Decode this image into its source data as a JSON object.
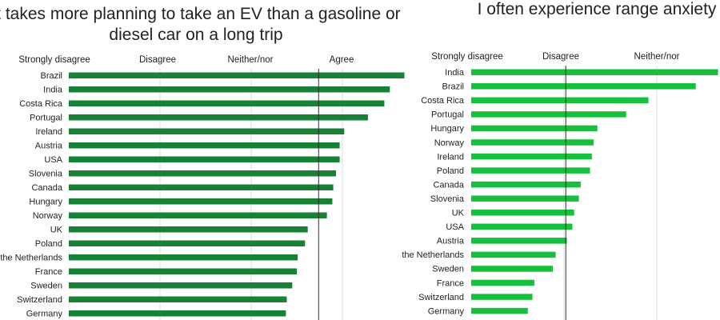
{
  "chart_data": [
    {
      "type": "bar",
      "orientation": "horizontal",
      "title_lines": [
        "It takes more planning to take an EV than a gasoline or",
        "diesel car on a long trip"
      ],
      "tick_labels": [
        "Strongly disagree",
        "Disagree",
        "Neither/nor",
        "Agree"
      ],
      "xlim": [
        1,
        4.75
      ],
      "reference_line": 3.74,
      "color": "#178236",
      "categories": [
        "Brazil",
        "India",
        "Costa Rica",
        "Portugal",
        "Ireland",
        "Austria",
        "USA",
        "Slovenia",
        "Canada",
        "Hungary",
        "Norway",
        "UK",
        "Poland",
        "the Netherlands",
        "France",
        "Sweden",
        "Switzerland",
        "Germany"
      ],
      "values": [
        4.68,
        4.52,
        4.46,
        4.28,
        4.02,
        3.97,
        3.97,
        3.93,
        3.9,
        3.89,
        3.83,
        3.62,
        3.59,
        3.51,
        3.5,
        3.45,
        3.39,
        3.38
      ]
    },
    {
      "type": "bar",
      "orientation": "horizontal",
      "title_lines": [
        "I often experience range anxiety"
      ],
      "tick_labels": [
        "Strongly disagree",
        "Disagree",
        "Neither/nor"
      ],
      "xlim": [
        1,
        3.68
      ],
      "reference_line": 2.02,
      "color": "#16c03c",
      "categories": [
        "India",
        "Brazil",
        "Costa Rica",
        "Portugal",
        "Hungary",
        "Norway",
        "Ireland",
        "Poland",
        "Canada",
        "Slovenia",
        "UK",
        "USA",
        "Austria",
        "the Netherlands",
        "Sweden",
        "France",
        "Switzerland",
        "Germany"
      ],
      "values": [
        3.66,
        3.42,
        2.91,
        2.67,
        2.36,
        2.32,
        2.3,
        2.28,
        2.18,
        2.16,
        2.11,
        2.09,
        2.03,
        1.91,
        1.88,
        1.68,
        1.66,
        1.61
      ]
    }
  ]
}
